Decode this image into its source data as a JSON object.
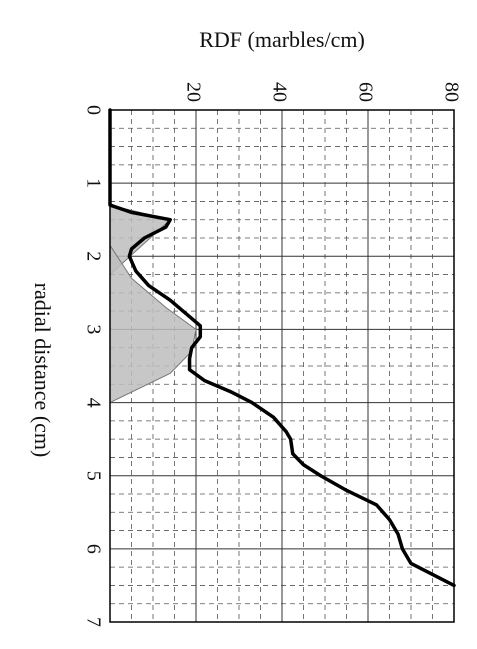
{
  "chart_data": {
    "type": "line",
    "title": "RDF (marbles/cm)",
    "xlabel": "radial distance (cm)",
    "xlim": [
      0,
      7
    ],
    "xticks": [
      0,
      1,
      2,
      3,
      4,
      5,
      6,
      7
    ],
    "xminorticks": [
      0.25,
      0.5,
      0.75,
      1.25,
      1.5,
      1.75,
      2.25,
      2.5,
      2.75,
      3.25,
      3.5,
      3.75,
      4.25,
      4.5,
      4.75,
      5.25,
      5.5,
      5.75,
      6.25,
      6.5,
      6.75
    ],
    "ylim": [
      0,
      80
    ],
    "yticks": [
      20,
      40,
      60,
      80
    ],
    "yminorticks": [
      5,
      10,
      15,
      25,
      30,
      35,
      45,
      50,
      55,
      65,
      70,
      75
    ],
    "grid": true,
    "series": [
      {
        "kind": "area",
        "color": "#bdbdbd",
        "x": [
          1.3,
          1.5,
          2.25
        ],
        "values": [
          0,
          14,
          0
        ]
      },
      {
        "kind": "area",
        "color": "#bdbdbd",
        "x": [
          1.85,
          2.3,
          2.7,
          3.0,
          3.3,
          3.6,
          4.0
        ],
        "values": [
          0,
          5,
          13,
          20,
          19,
          14,
          0
        ]
      },
      {
        "kind": "line",
        "color": "#000000",
        "x": [
          0,
          1.3,
          1.4,
          1.5,
          1.6,
          1.75,
          1.9,
          2.0,
          2.2,
          2.4,
          2.6,
          2.8,
          2.95,
          3.1,
          3.25,
          3.4,
          3.55,
          3.7,
          3.85,
          4.0,
          4.2,
          4.4,
          4.5,
          4.7,
          4.85,
          5.0,
          5.2,
          5.4,
          5.6,
          5.8,
          6.0,
          6.2,
          6.35,
          6.5
        ],
        "values": [
          0,
          0,
          5,
          14,
          13,
          8,
          5,
          4.5,
          6,
          9,
          14,
          18,
          21,
          21,
          19,
          18.5,
          18.5,
          22,
          28,
          33,
          38,
          41,
          42,
          42.5,
          45,
          49,
          55,
          62,
          65,
          67,
          68,
          70,
          75,
          80
        ]
      }
    ]
  }
}
